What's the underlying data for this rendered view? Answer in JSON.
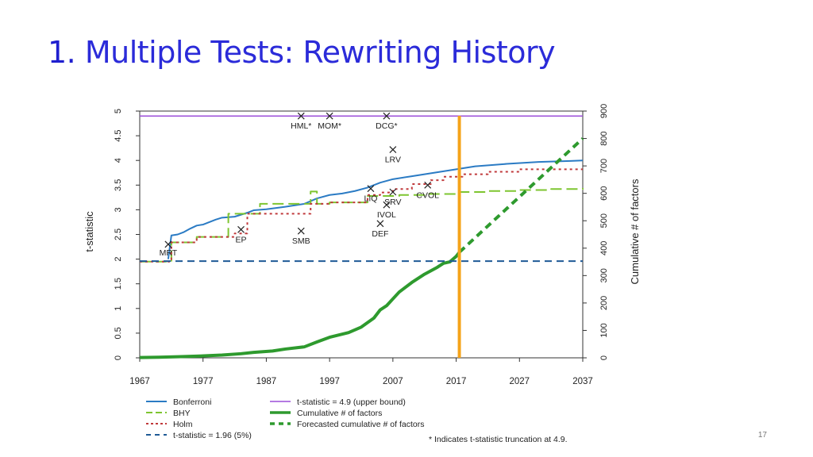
{
  "slide": {
    "title_number": "1.",
    "title_text": " Multiple Tests: Rewriting History",
    "page_number": "17"
  },
  "chart_data": {
    "type": "line",
    "xlabel": "",
    "ylabel": "t-statistic",
    "y2label": "Cumulative # of factors",
    "xlim": [
      1967,
      2037
    ],
    "ylim": [
      0,
      5
    ],
    "y2lim": [
      0,
      900
    ],
    "x_ticks": [
      1967,
      1977,
      1987,
      1997,
      2007,
      2017,
      2027,
      2037
    ],
    "y_ticks": [
      0,
      0.5,
      1,
      1.5,
      2,
      2.5,
      3,
      3.5,
      4,
      4.5,
      5
    ],
    "y2_ticks": [
      0,
      100,
      200,
      300,
      400,
      500,
      600,
      700,
      800,
      900
    ],
    "vertical_line_x": 2017.5,
    "series": [
      {
        "name": "Bonferroni",
        "axis": "left",
        "color": "#2b7bc4",
        "dash": "solid",
        "width": 2,
        "x": [
          1971.5,
          1972,
          1973,
          1974,
          1975,
          1976,
          1977,
          1978,
          1979,
          1980,
          1982,
          1984,
          1985,
          1987,
          1990,
          1993,
          1995,
          1997,
          1999,
          2001,
          2003,
          2005,
          2007,
          2010,
          2013,
          2015,
          2017,
          2020,
          2025,
          2030,
          2035,
          2037
        ],
        "y": [
          2.0,
          2.48,
          2.5,
          2.55,
          2.62,
          2.68,
          2.7,
          2.75,
          2.8,
          2.84,
          2.86,
          2.94,
          2.99,
          3.01,
          3.06,
          3.12,
          3.23,
          3.3,
          3.33,
          3.38,
          3.45,
          3.55,
          3.62,
          3.68,
          3.74,
          3.78,
          3.82,
          3.88,
          3.93,
          3.97,
          3.99,
          4.0
        ]
      },
      {
        "name": "BHY",
        "axis": "left",
        "color": "#7ec530",
        "dash": "long",
        "width": 2,
        "x": [
          1967,
          1971.5,
          1972,
          1973,
          1975,
          1976,
          1978,
          1980,
          1981,
          1984,
          1986,
          1990,
          1993,
          1994,
          1995,
          1997,
          2000,
          2003,
          2005,
          2008,
          2012,
          2017,
          2022,
          2027,
          2032,
          2037
        ],
        "y": [
          1.95,
          1.95,
          2.34,
          2.34,
          2.34,
          2.45,
          2.45,
          2.45,
          2.92,
          2.92,
          3.12,
          3.12,
          3.12,
          3.37,
          3.12,
          3.15,
          3.15,
          3.28,
          3.28,
          3.3,
          3.32,
          3.36,
          3.38,
          3.4,
          3.42,
          3.44
        ]
      },
      {
        "name": "Holm",
        "axis": "left",
        "color": "#c0393b",
        "dash": "dot",
        "width": 2,
        "x": [
          1967,
          1971.5,
          1972,
          1974,
          1976,
          1980,
          1981,
          1982,
          1983,
          1984,
          1986,
          1990,
          1993,
          1994,
          1995,
          1997,
          2000,
          2003,
          2005,
          2007,
          2010,
          2013,
          2015,
          2018,
          2022,
          2027,
          2032,
          2037
        ],
        "y": [
          1.95,
          1.95,
          2.34,
          2.34,
          2.45,
          2.45,
          2.45,
          2.52,
          2.52,
          2.92,
          2.92,
          2.92,
          2.92,
          3.12,
          3.12,
          3.15,
          3.15,
          3.3,
          3.35,
          3.42,
          3.52,
          3.6,
          3.67,
          3.72,
          3.77,
          3.82,
          3.82,
          3.82
        ]
      },
      {
        "name": "t-statistic = 4.9 (upper bound)",
        "axis": "left",
        "color": "#9b4fd9",
        "dash": "solid",
        "width": 1.5,
        "x": [
          1967,
          2037
        ],
        "y": [
          4.9,
          4.9
        ]
      },
      {
        "name": "Cumulative # of factors",
        "axis": "right",
        "color": "#2e9a2e",
        "dash": "solid",
        "width": 4,
        "x": [
          1967,
          1970,
          1973,
          1976,
          1980,
          1983,
          1985,
          1988,
          1990,
          1993,
          1995,
          1997,
          2000,
          2002,
          2004,
          2005,
          2006,
          2007,
          2008,
          2010,
          2012,
          2014,
          2015,
          2016,
          2017,
          2017.5
        ],
        "y": [
          1,
          2,
          4,
          6,
          10,
          15,
          20,
          25,
          32,
          40,
          58,
          75,
          92,
          112,
          145,
          175,
          190,
          215,
          240,
          275,
          305,
          330,
          345,
          350,
          370,
          385
        ]
      },
      {
        "name": "Forecasted cumulative # of factors",
        "axis": "right",
        "color": "#2e9a2e",
        "dash": "dash",
        "width": 4,
        "x": [
          2017.5,
          2037
        ],
        "y": [
          385,
          800
        ]
      },
      {
        "name": "t-statistic = 1.96 (5%)",
        "axis": "left",
        "color": "#1f5a96",
        "dash": "dash",
        "width": 2,
        "x": [
          1967,
          2037
        ],
        "y": [
          1.96,
          1.96
        ]
      }
    ],
    "points": [
      {
        "label": "MRT",
        "x": 1971.5,
        "y": 2.3
      },
      {
        "label": "EP",
        "x": 1983,
        "y": 2.6
      },
      {
        "label": "SMB",
        "x": 1992.5,
        "y": 2.57
      },
      {
        "label": "HML*",
        "x": 1992.5,
        "y": 4.9
      },
      {
        "label": "MOM*",
        "x": 1997,
        "y": 4.9
      },
      {
        "label": "DCG*",
        "x": 2006,
        "y": 4.9
      },
      {
        "label": "LRV",
        "x": 2007,
        "y": 4.22
      },
      {
        "label": "LIQ",
        "x": 2003.5,
        "y": 3.43
      },
      {
        "label": "SRV",
        "x": 2007,
        "y": 3.36
      },
      {
        "label": "CVOL",
        "x": 2012.5,
        "y": 3.5
      },
      {
        "label": "IVOL",
        "x": 2006,
        "y": 3.1
      },
      {
        "label": "DEF",
        "x": 2005,
        "y": 2.72
      }
    ],
    "legend": {
      "placement": "bottom",
      "left": [
        "Bonferroni",
        "BHY",
        "Holm",
        "t-statistic = 1.96 (5%)"
      ],
      "right": [
        "t-statistic = 4.9 (upper bound)",
        "Cumulative # of factors",
        "Forecasted cumulative # of factors"
      ]
    },
    "note": "* Indicates t-statistic truncation at 4.9."
  }
}
